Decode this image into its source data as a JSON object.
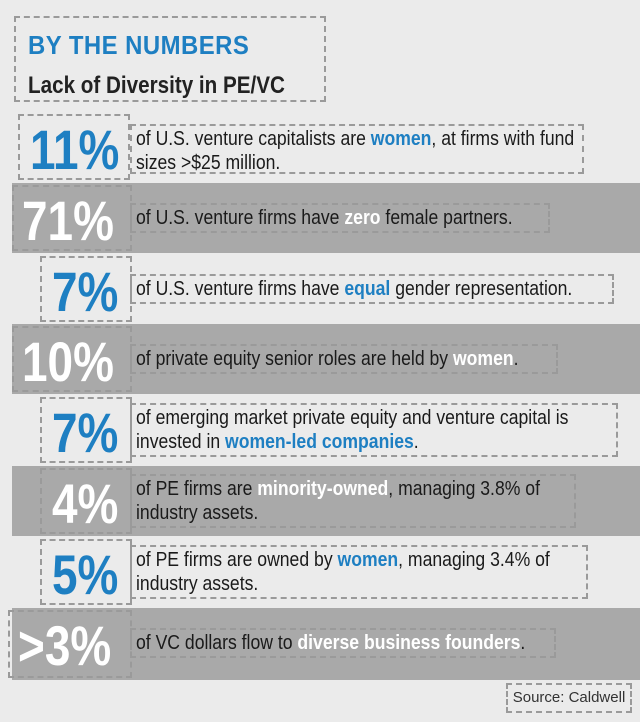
{
  "header": {
    "kicker": "BY THE NUMBERS",
    "title": "Lack of Diversity in PE/VC"
  },
  "stats": [
    {
      "value": "11%",
      "text_parts": [
        "of U.S. venture capitalists are ",
        "women",
        ", at firms with fund sizes >$25 million."
      ]
    },
    {
      "value": "71%",
      "text_parts": [
        "of U.S. venture firms have ",
        "zero",
        " female partners."
      ]
    },
    {
      "value": "7%",
      "text_parts": [
        "of U.S. venture firms have ",
        "equal",
        " gender representation."
      ]
    },
    {
      "value": "10%",
      "text_parts": [
        "of private equity senior roles are held by ",
        "women",
        "."
      ]
    },
    {
      "value": "7%",
      "text_parts": [
        "of emerging market private equity and venture capital is invested in ",
        "women-led companies",
        "."
      ]
    },
    {
      "value": "4%",
      "text_parts": [
        "of PE firms are ",
        "minority-owned",
        ", managing 3.8% of industry assets."
      ]
    },
    {
      "value": "5%",
      "text_parts": [
        "of PE firms are owned by ",
        "women",
        ", managing 3.4% of industry assets."
      ]
    },
    {
      "value": ">3%",
      "text_parts": [
        "of VC dollars flow to ",
        "diverse business founders",
        "."
      ]
    }
  ],
  "source": "Source: Caldwell",
  "colors": {
    "accent": "#1e7fc2",
    "band": "#a9a9a9",
    "background": "#ebebeb"
  }
}
